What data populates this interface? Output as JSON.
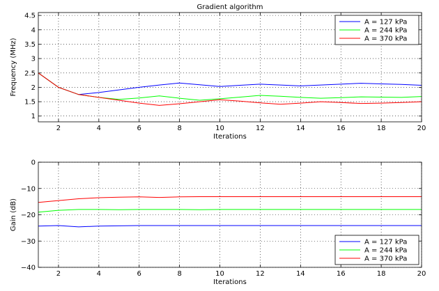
{
  "chart_data": [
    {
      "type": "line",
      "title": "Gradient algorithm",
      "xlabel": "Iterations",
      "ylabel": "Frequency (MHz)",
      "xlim": [
        1,
        20
      ],
      "ylim": [
        0.8,
        4.6
      ],
      "xticks": [
        2,
        4,
        6,
        8,
        10,
        12,
        14,
        16,
        18,
        20
      ],
      "yticks": [
        1,
        1.5,
        2,
        2.5,
        3,
        3.5,
        4,
        4.5
      ],
      "ytick_labels": [
        "1",
        "1.5",
        "2",
        "2.5",
        "3",
        "3.5",
        "4",
        "4.5"
      ],
      "grid": true,
      "legend_position": "top-right",
      "x": [
        1,
        2,
        3,
        4,
        5,
        6,
        7,
        8,
        9,
        10,
        11,
        12,
        13,
        14,
        15,
        16,
        17,
        18,
        19,
        20
      ],
      "series": [
        {
          "name": "A = 127 kPa",
          "color": "#0000ff",
          "values": [
            2.5,
            2.0,
            1.75,
            1.82,
            1.91,
            2.0,
            2.08,
            2.15,
            2.09,
            2.03,
            2.07,
            2.11,
            2.08,
            2.05,
            2.08,
            2.11,
            2.14,
            2.12,
            2.1,
            2.07
          ]
        },
        {
          "name": "A = 244 kPa",
          "color": "#00ff00",
          "values": [
            2.5,
            2.0,
            1.75,
            1.65,
            1.58,
            1.63,
            1.7,
            1.62,
            1.55,
            1.6,
            1.66,
            1.72,
            1.69,
            1.65,
            1.62,
            1.64,
            1.67,
            1.66,
            1.65,
            1.68
          ]
        },
        {
          "name": "A = 370 kPa",
          "color": "#ff0000",
          "values": [
            2.5,
            2.0,
            1.75,
            1.65,
            1.55,
            1.45,
            1.37,
            1.43,
            1.5,
            1.57,
            1.52,
            1.46,
            1.41,
            1.45,
            1.5,
            1.47,
            1.44,
            1.45,
            1.47,
            1.5
          ]
        }
      ]
    },
    {
      "type": "line",
      "title": "",
      "xlabel": "Iterations",
      "ylabel": "Gain (dB)",
      "xlim": [
        1,
        20
      ],
      "ylim": [
        -40,
        0
      ],
      "xticks": [
        2,
        4,
        6,
        8,
        10,
        12,
        14,
        16,
        18,
        20
      ],
      "yticks": [
        -40,
        -30,
        -20,
        -10,
        0
      ],
      "ytick_labels": [
        "−40",
        "−30",
        "−20",
        "−10",
        "0"
      ],
      "grid": true,
      "legend_position": "bottom-right",
      "x": [
        1,
        2,
        3,
        4,
        5,
        6,
        7,
        8,
        9,
        10,
        11,
        12,
        13,
        14,
        15,
        16,
        17,
        18,
        19,
        20
      ],
      "series": [
        {
          "name": "A = 127 kPa",
          "color": "#0000ff",
          "values": [
            -24.3,
            -24.1,
            -24.6,
            -24.3,
            -24.2,
            -24.1,
            -24.1,
            -24.1,
            -24.1,
            -24.1,
            -24.1,
            -24.1,
            -24.1,
            -24.1,
            -24.1,
            -24.1,
            -24.1,
            -24.1,
            -24.1,
            -24.1
          ]
        },
        {
          "name": "A = 244 kPa",
          "color": "#00ff00",
          "values": [
            -19.0,
            -18.3,
            -18.0,
            -18.0,
            -18.1,
            -18.0,
            -18.0,
            -18.0,
            -18.1,
            -18.0,
            -18.0,
            -18.0,
            -18.0,
            -18.0,
            -18.0,
            -18.0,
            -18.0,
            -18.0,
            -18.0,
            -18.0
          ]
        },
        {
          "name": "A = 370 kPa",
          "color": "#ff0000",
          "values": [
            -15.3,
            -14.6,
            -13.9,
            -13.5,
            -13.3,
            -13.2,
            -13.4,
            -13.2,
            -13.1,
            -13.1,
            -13.1,
            -13.1,
            -13.1,
            -13.1,
            -13.1,
            -13.1,
            -13.1,
            -13.1,
            -13.1,
            -13.1
          ]
        }
      ]
    }
  ]
}
